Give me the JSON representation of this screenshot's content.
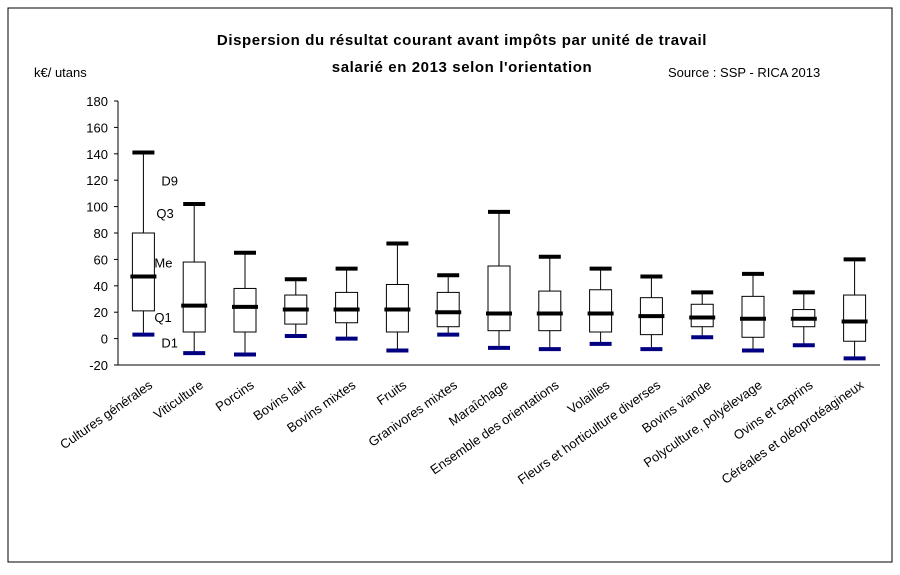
{
  "chart_data": {
    "type": "box",
    "title": "Dispersion du résultat courant avant impôts par unité de travail",
    "subtitle": "salarié en 2013 selon l'orientation",
    "source": "Source : SSP - RICA 2013",
    "y_label": "k€/ utans",
    "categories": [
      "Cultures générales",
      "Viticulture",
      "Porcins",
      "Bovins lait",
      "Bovins mixtes",
      "Fruits",
      "Granivores mixtes",
      "Maraîchage",
      "Ensemble des orientations",
      "Volailles",
      "Fleurs et horticulture diverses",
      "Bovins viande",
      "Polyculture, polyélevage",
      "Ovins et caprins",
      "Céréales et oléoprotéagineux"
    ],
    "series": [
      {
        "name": "D9",
        "color": "#000000",
        "values": [
          141,
          102,
          65,
          45,
          53,
          72,
          48,
          96,
          62,
          53,
          47,
          35,
          49,
          35,
          60
        ]
      },
      {
        "name": "Q3",
        "color": "#000000",
        "values": [
          80,
          58,
          38,
          33,
          35,
          41,
          35,
          55,
          36,
          37,
          31,
          26,
          32,
          22,
          33
        ]
      },
      {
        "name": "Me",
        "color": "#000000",
        "values": [
          47,
          25,
          24,
          22,
          22,
          22,
          20,
          19,
          19,
          19,
          17,
          16,
          15,
          15,
          13
        ]
      },
      {
        "name": "Q1",
        "color": "#000000",
        "values": [
          21,
          5,
          5,
          11,
          12,
          5,
          9,
          6,
          6,
          5,
          3,
          9,
          1,
          9,
          -2
        ]
      },
      {
        "name": "D1",
        "color": "#000080",
        "values": [
          3,
          -11,
          -12,
          2,
          0,
          -9,
          3,
          -7,
          -8,
          -4,
          -8,
          1,
          -9,
          -5,
          -15
        ]
      }
    ],
    "ylim": [
      -20,
      180
    ],
    "yticks": [
      -20,
      0,
      20,
      40,
      60,
      80,
      100,
      120,
      140,
      160,
      180
    ]
  }
}
